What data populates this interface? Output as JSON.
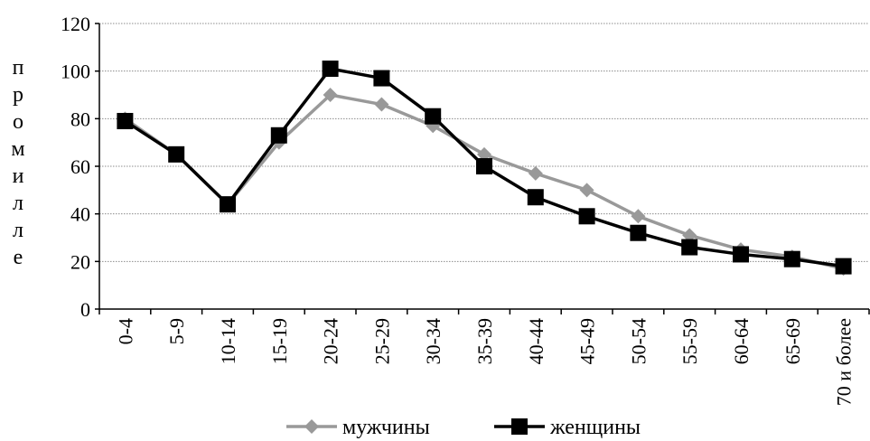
{
  "chart_data": {
    "type": "line",
    "title": "",
    "xlabel": "",
    "ylabel": "промилле",
    "categories": [
      "0-4",
      "5-9",
      "10-14",
      "15-19",
      "20-24",
      "25-29",
      "30-34",
      "35-39",
      "40-44",
      "45-49",
      "50-54",
      "55-59",
      "60-64",
      "65-69",
      "70 и более"
    ],
    "ylim": [
      0,
      120
    ],
    "yticks": [
      "0",
      "20",
      "40",
      "60",
      "80",
      "100",
      "120"
    ],
    "grid": true,
    "legend_position": "bottom",
    "series": [
      {
        "name": "мужчины",
        "color": "#999999",
        "marker": "diamond",
        "values": [
          80,
          65,
          44,
          70,
          90,
          86,
          77,
          65,
          57,
          50,
          39,
          31,
          25,
          22,
          17
        ]
      },
      {
        "name": "женщины",
        "color": "#000000",
        "marker": "square",
        "values": [
          79,
          65,
          44,
          73,
          101,
          97,
          81,
          60,
          47,
          39,
          32,
          26,
          23,
          21,
          18
        ]
      }
    ]
  }
}
